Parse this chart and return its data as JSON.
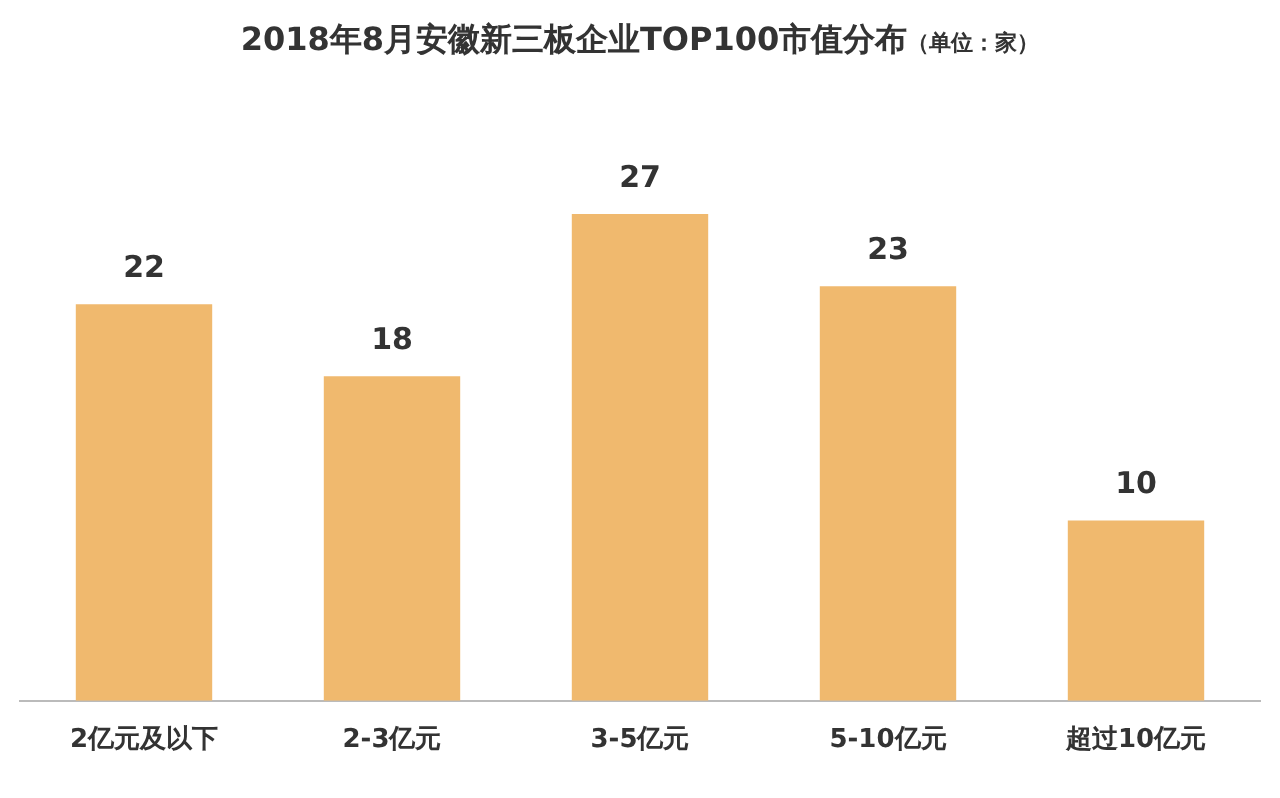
{
  "chart_data": {
    "type": "bar",
    "title": "2018年8月安徽新三板企业TOP100市值分布",
    "subtitle": "（单位：家）",
    "categories": [
      "2亿元及以下",
      "2-3亿元",
      "3-5亿元",
      "5-10亿元",
      "超过10亿元"
    ],
    "values": [
      22,
      18,
      27,
      23,
      10
    ],
    "color": "#f0b96e",
    "data_labels": true,
    "grid": false,
    "legend": false
  }
}
